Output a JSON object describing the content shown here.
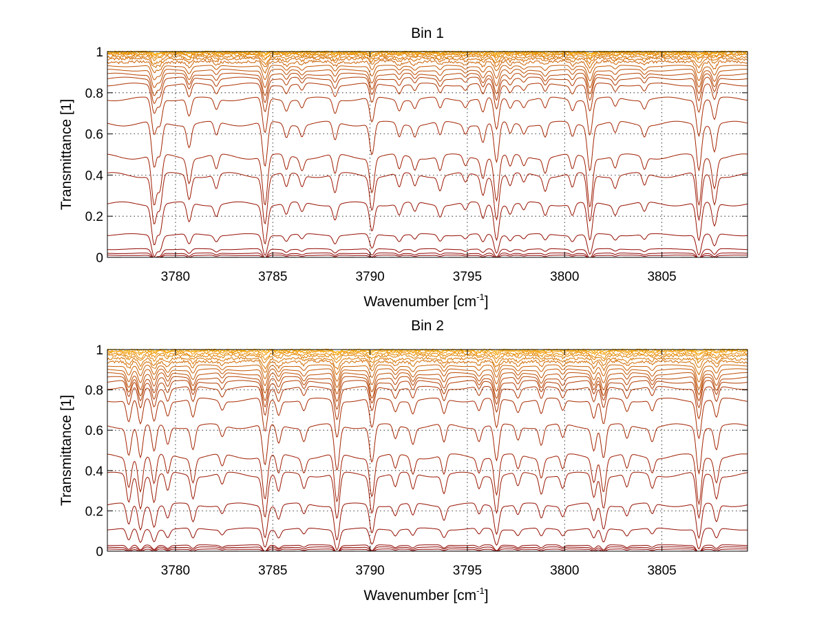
{
  "chart_data": [
    {
      "type": "line",
      "title": "Bin 1",
      "xlabel": {
        "prefix": "Wavenumber [cm",
        "sup": "-1",
        "suffix": "]"
      },
      "ylabel": "Transmittance [1]",
      "xlim": [
        3776.5,
        3809.4
      ],
      "ylim": [
        0,
        1
      ],
      "xticks": [
        3780,
        3785,
        3790,
        3795,
        3800,
        3805
      ],
      "xtick_labels": [
        "3780",
        "3785",
        "3790",
        "3795",
        "3800",
        "3805"
      ],
      "yticks": [
        0,
        0.2,
        0.4,
        0.6,
        0.8,
        1
      ],
      "ytick_labels": [
        "0",
        "0.2",
        "0.4",
        "0.6",
        "0.8",
        "1"
      ],
      "grid": true,
      "line_color_low": "#8b0000",
      "line_color_high": "#ffb000",
      "absorption_lines": [
        {
          "x": 3778.9,
          "strength": 1.0
        },
        {
          "x": 3779.2,
          "strength": 0.7
        },
        {
          "x": 3780.7,
          "strength": 0.5
        },
        {
          "x": 3782.1,
          "strength": 0.3
        },
        {
          "x": 3784.6,
          "strength": 1.0
        },
        {
          "x": 3785.7,
          "strength": 0.3
        },
        {
          "x": 3786.5,
          "strength": 0.25
        },
        {
          "x": 3788.2,
          "strength": 0.4
        },
        {
          "x": 3790.1,
          "strength": 0.7
        },
        {
          "x": 3791.5,
          "strength": 0.3
        },
        {
          "x": 3792.3,
          "strength": 0.25
        },
        {
          "x": 3793.6,
          "strength": 0.3
        },
        {
          "x": 3794.9,
          "strength": 0.2
        },
        {
          "x": 3795.8,
          "strength": 0.4
        },
        {
          "x": 3796.5,
          "strength": 0.9
        },
        {
          "x": 3797.2,
          "strength": 0.25
        },
        {
          "x": 3797.9,
          "strength": 0.2
        },
        {
          "x": 3799.0,
          "strength": 0.3
        },
        {
          "x": 3800.4,
          "strength": 0.3
        },
        {
          "x": 3801.3,
          "strength": 1.0
        },
        {
          "x": 3802.6,
          "strength": 0.25
        },
        {
          "x": 3804.1,
          "strength": 0.25
        },
        {
          "x": 3806.9,
          "strength": 1.0
        },
        {
          "x": 3807.7,
          "strength": 0.6
        }
      ],
      "baselines": [
        0.0,
        0.01,
        0.02,
        0.04,
        0.11,
        0.26,
        0.4,
        0.49,
        0.65,
        0.77,
        0.84,
        0.87,
        0.89,
        0.91,
        0.93,
        0.95,
        0.965,
        0.975,
        0.985,
        0.99,
        0.995,
        0.998,
        1.0
      ]
    },
    {
      "type": "line",
      "title": "Bin 2",
      "xlabel": {
        "prefix": "Wavenumber [cm",
        "sup": "-1",
        "suffix": "]"
      },
      "ylabel": "Transmittance [1]",
      "xlim": [
        3776.5,
        3809.4
      ],
      "ylim": [
        0,
        1
      ],
      "xticks": [
        3780,
        3785,
        3790,
        3795,
        3800,
        3805
      ],
      "xtick_labels": [
        "3780",
        "3785",
        "3790",
        "3795",
        "3800",
        "3805"
      ],
      "yticks": [
        0,
        0.2,
        0.4,
        0.6,
        0.8,
        1
      ],
      "ytick_labels": [
        "0",
        "0.2",
        "0.4",
        "0.6",
        "0.8",
        "1"
      ],
      "grid": true,
      "line_color_low": "#8b0000",
      "line_color_high": "#ffb000",
      "absorption_lines": [
        {
          "x": 3777.6,
          "strength": 0.6
        },
        {
          "x": 3778.2,
          "strength": 0.7
        },
        {
          "x": 3778.9,
          "strength": 0.6
        },
        {
          "x": 3779.6,
          "strength": 0.4
        },
        {
          "x": 3780.9,
          "strength": 0.5
        },
        {
          "x": 3782.4,
          "strength": 0.25
        },
        {
          "x": 3784.6,
          "strength": 0.9
        },
        {
          "x": 3785.3,
          "strength": 0.4
        },
        {
          "x": 3786.6,
          "strength": 0.3
        },
        {
          "x": 3788.3,
          "strength": 1.0
        },
        {
          "x": 3790.1,
          "strength": 0.8
        },
        {
          "x": 3791.3,
          "strength": 0.3
        },
        {
          "x": 3792.2,
          "strength": 0.35
        },
        {
          "x": 3793.8,
          "strength": 0.4
        },
        {
          "x": 3795.6,
          "strength": 0.3
        },
        {
          "x": 3796.5,
          "strength": 0.8
        },
        {
          "x": 3797.6,
          "strength": 0.3
        },
        {
          "x": 3798.8,
          "strength": 0.4
        },
        {
          "x": 3799.9,
          "strength": 0.3
        },
        {
          "x": 3801.5,
          "strength": 0.5
        },
        {
          "x": 3802.0,
          "strength": 0.7
        },
        {
          "x": 3803.2,
          "strength": 0.3
        },
        {
          "x": 3804.5,
          "strength": 0.3
        },
        {
          "x": 3806.9,
          "strength": 1.0
        },
        {
          "x": 3807.8,
          "strength": 0.5
        }
      ],
      "baselines": [
        0.0,
        0.01,
        0.02,
        0.03,
        0.11,
        0.23,
        0.38,
        0.47,
        0.62,
        0.75,
        0.81,
        0.84,
        0.86,
        0.88,
        0.9,
        0.92,
        0.94,
        0.955,
        0.97,
        0.98,
        0.99,
        0.995,
        1.0
      ]
    }
  ]
}
